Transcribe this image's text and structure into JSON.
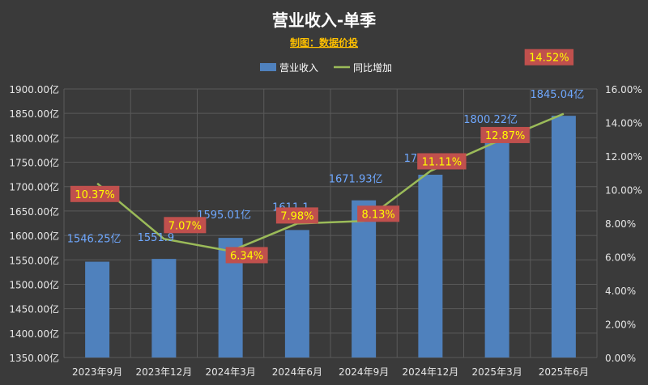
{
  "chart_data": {
    "type": "bar",
    "title": "营业收入-单季",
    "subtitle": "制图：数据价投",
    "categories": [
      "2023年9月",
      "2023年12月",
      "2024年3月",
      "2024年6月",
      "2024年9月",
      "2024年12月",
      "2025年3月",
      "2025年6月"
    ],
    "series": [
      {
        "name": "营业收入",
        "kind": "bar",
        "axis": "left",
        "values": [
          1546.25,
          1551.9,
          1595.01,
          1611.1,
          1671.93,
          1724.4,
          1800.22,
          1845.04
        ],
        "labels": [
          "1546.25亿",
          "1551.9",
          "1595.01亿",
          "1611.1",
          "1671.93亿",
          "1724.4",
          "1800.22亿",
          "1845.04亿"
        ]
      },
      {
        "name": "同比增加",
        "kind": "line",
        "axis": "right",
        "values": [
          10.37,
          7.07,
          6.34,
          7.98,
          8.13,
          11.11,
          12.87,
          14.52
        ],
        "labels": [
          "10.37%",
          "7.07%",
          "6.34%",
          "7.98%",
          "8.13%",
          "11.11%",
          "12.87%",
          "14.52%"
        ]
      }
    ],
    "y_left": {
      "ylim": [
        1350,
        1900
      ],
      "ticks": [
        1900,
        1850,
        1800,
        1750,
        1700,
        1650,
        1600,
        1550,
        1500,
        1450,
        1400,
        1350
      ],
      "tick_labels": [
        "1900.00亿",
        "1850.00亿",
        "1800.00亿",
        "1750.00亿",
        "1700.00亿",
        "1650.00亿",
        "1600.00亿",
        "1550.00亿",
        "1500.00亿",
        "1450.00亿",
        "1400.00亿",
        "1350.00亿"
      ]
    },
    "y_right": {
      "ylim": [
        0,
        16
      ],
      "ticks": [
        16,
        14,
        12,
        10,
        8,
        6,
        4,
        2,
        0
      ],
      "tick_labels": [
        "16.00%",
        "14.00%",
        "12.00%",
        "10.00%",
        "8.00%",
        "6.00%",
        "4.00%",
        "2.00%",
        "0.00%"
      ]
    },
    "grid": true,
    "legend_position": "top",
    "colors": {
      "bar": "#4f81bd",
      "line": "#9bbb59",
      "label_box": "#c0504d",
      "label_text": "#ffff00",
      "bar_label": "#6fa8ff",
      "background": "#3a3a3a"
    }
  }
}
